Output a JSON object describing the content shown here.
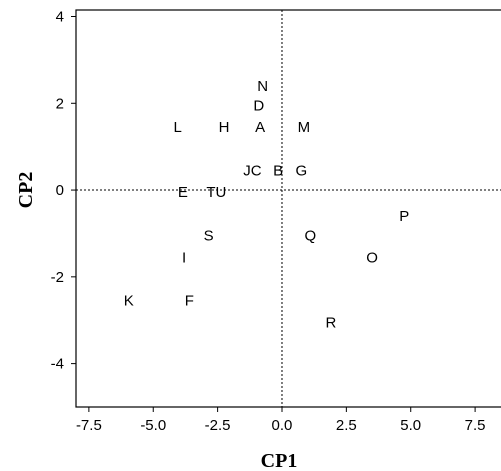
{
  "chart_data": {
    "type": "scatter",
    "title": "",
    "xlabel": "CP1",
    "ylabel": "CP2",
    "xlim": [
      -8.0,
      8.7
    ],
    "ylim": [
      -5.0,
      4.15
    ],
    "xticks": [
      -7.5,
      -5.0,
      -2.5,
      0.0,
      2.5,
      5.0,
      7.5
    ],
    "xtick_labels": [
      "-7.5",
      "-5.0",
      "-2.5",
      "0.0",
      "2.5",
      "5.0",
      "7.5"
    ],
    "yticks": [
      -4,
      -2,
      0,
      2,
      4
    ],
    "ytick_labels": [
      "-4",
      "-2",
      "0",
      "2",
      "4"
    ],
    "grid": false,
    "reference_lines": {
      "x": 0,
      "y": 0,
      "style": "dotted"
    },
    "points": [
      {
        "label": "N",
        "x": -0.75,
        "y": 2.4
      },
      {
        "label": "D",
        "x": -0.9,
        "y": 1.95
      },
      {
        "label": "L",
        "x": -4.05,
        "y": 1.45
      },
      {
        "label": "H",
        "x": -2.25,
        "y": 1.45
      },
      {
        "label": "A",
        "x": -0.85,
        "y": 1.45
      },
      {
        "label": "M",
        "x": 0.85,
        "y": 1.45
      },
      {
        "label": "JC",
        "x": -1.15,
        "y": 0.45
      },
      {
        "label": "B",
        "x": -0.15,
        "y": 0.45
      },
      {
        "label": "G",
        "x": 0.75,
        "y": 0.45
      },
      {
        "label": "E",
        "x": -3.85,
        "y": -0.05
      },
      {
        "label": "TU",
        "x": -2.55,
        "y": -0.05
      },
      {
        "label": "P",
        "x": 4.75,
        "y": -0.6
      },
      {
        "label": "S",
        "x": -2.85,
        "y": -1.05
      },
      {
        "label": "Q",
        "x": 1.1,
        "y": -1.05
      },
      {
        "label": "I",
        "x": -3.8,
        "y": -1.55
      },
      {
        "label": "O",
        "x": 3.5,
        "y": -1.55
      },
      {
        "label": "K",
        "x": -5.95,
        "y": -2.55
      },
      {
        "label": "F",
        "x": -3.6,
        "y": -2.55
      },
      {
        "label": "R",
        "x": 1.9,
        "y": -3.05
      }
    ]
  }
}
